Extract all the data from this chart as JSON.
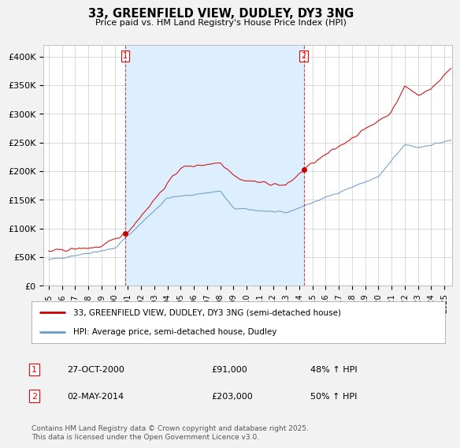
{
  "title": "33, GREENFIELD VIEW, DUDLEY, DY3 3NG",
  "subtitle": "Price paid vs. HM Land Registry's House Price Index (HPI)",
  "ylim": [
    0,
    420000
  ],
  "yticks": [
    0,
    50000,
    100000,
    150000,
    200000,
    250000,
    300000,
    350000,
    400000
  ],
  "ytick_labels": [
    "£0",
    "£50K",
    "£100K",
    "£150K",
    "£200K",
    "£250K",
    "£300K",
    "£350K",
    "£400K"
  ],
  "sale1_date": 2000.82,
  "sale1_price": 91000,
  "sale1_label": "27-OCT-2000",
  "sale1_amount": "£91,000",
  "sale1_hpi": "48% ↑ HPI",
  "sale2_date": 2014.33,
  "sale2_price": 203000,
  "sale2_label": "02-MAY-2014",
  "sale2_amount": "£203,000",
  "sale2_hpi": "50% ↑ HPI",
  "property_color": "#cc0000",
  "hpi_color": "#6699cc",
  "shade_color": "#ddeeff",
  "legend_property": "33, GREENFIELD VIEW, DUDLEY, DY3 3NG (semi-detached house)",
  "legend_hpi": "HPI: Average price, semi-detached house, Dudley",
  "footer": "Contains HM Land Registry data © Crown copyright and database right 2025.\nThis data is licensed under the Open Government Licence v3.0.",
  "background_color": "#f2f2f2",
  "plot_background": "#ffffff",
  "xstart": 1995.0,
  "xend": 2025.5
}
